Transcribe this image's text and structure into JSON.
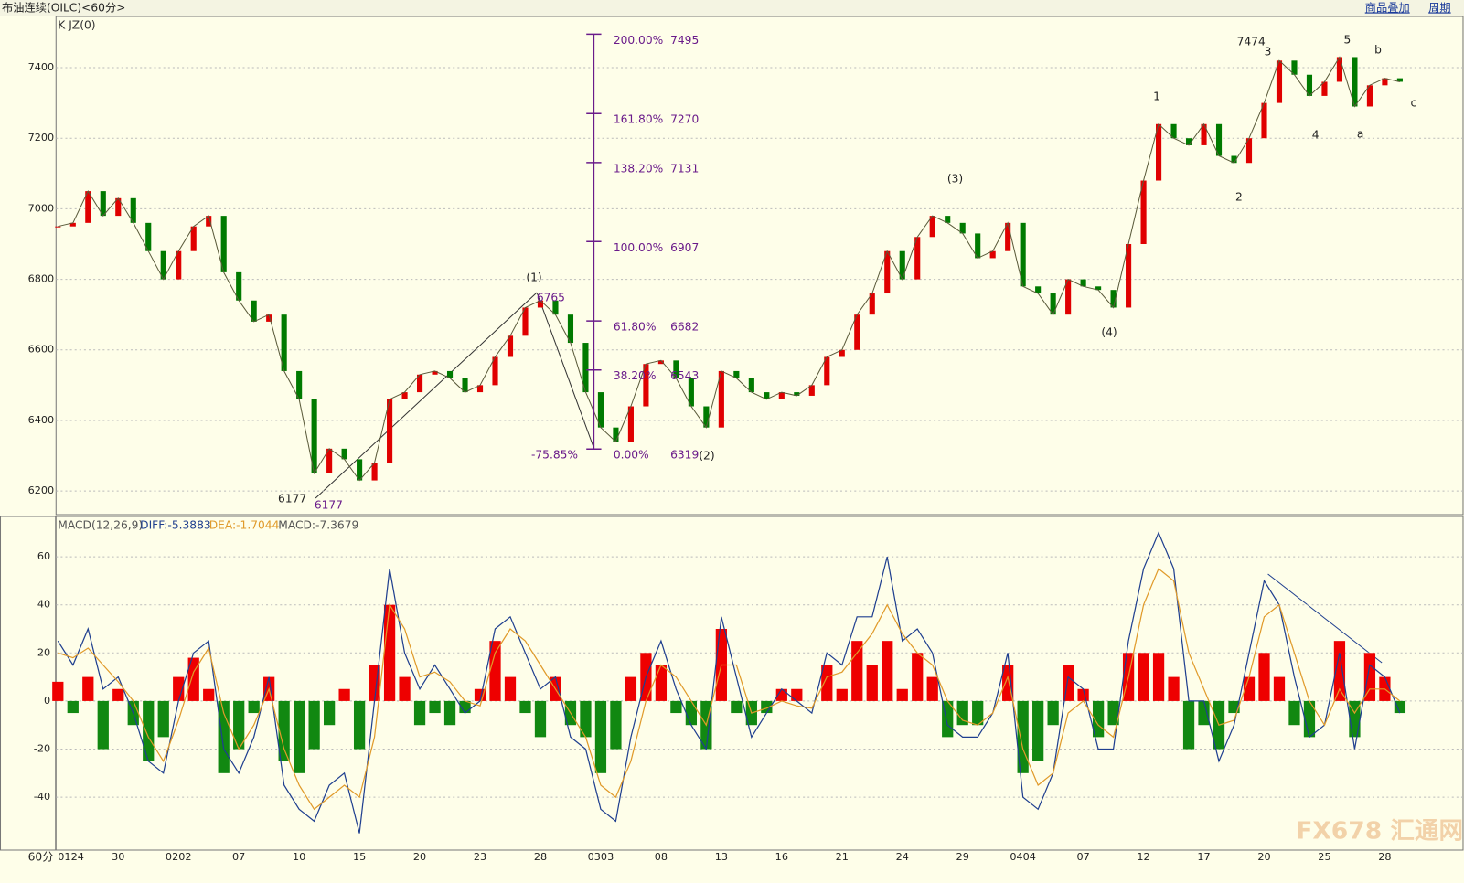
{
  "header": {
    "title": "布油连续(OILC)<60分>",
    "overlay": "商品叠加",
    "period": "周期",
    "indicator": "K JZ(0)",
    "timeframe": "60分",
    "watermark": "FX678 汇通网"
  },
  "chart_data": [
    {
      "type": "candlestick",
      "up_color": "#e00000",
      "down_color": "#007a00",
      "categories": [
        "0124",
        null,
        null,
        null,
        "30",
        null,
        null,
        null,
        "0202",
        null,
        null,
        null,
        "07",
        null,
        null,
        null,
        "10",
        null,
        null,
        null,
        "15",
        null,
        null,
        null,
        "20",
        null,
        null,
        null,
        "23",
        null,
        null,
        null,
        "28",
        null,
        null,
        null,
        "0303",
        null,
        null,
        null,
        "08",
        null,
        null,
        null,
        "13",
        null,
        null,
        null,
        "16",
        null,
        null,
        null,
        "21",
        null,
        null,
        null,
        "24",
        null,
        null,
        null,
        "29",
        null,
        null,
        null,
        "0404",
        null,
        null,
        null,
        "07",
        null,
        null,
        null,
        "12",
        null,
        null,
        null,
        "17",
        null,
        null,
        null,
        "20",
        null,
        null,
        null,
        "25",
        null,
        null,
        null,
        "28",
        null
      ],
      "values": [
        6950,
        6960,
        7050,
        6980,
        7030,
        6960,
        6880,
        6800,
        6880,
        6950,
        6980,
        6820,
        6740,
        6680,
        6700,
        6540,
        6460,
        6250,
        6320,
        6290,
        6230,
        6280,
        6460,
        6480,
        6530,
        6540,
        6520,
        6480,
        6500,
        6580,
        6640,
        6720,
        6740,
        6700,
        6620,
        6480,
        6380,
        6340,
        6440,
        6560,
        6570,
        6520,
        6440,
        6380,
        6540,
        6520,
        6480,
        6460,
        6480,
        6470,
        6500,
        6580,
        6600,
        6700,
        6760,
        6880,
        6800,
        6920,
        6980,
        6960,
        6930,
        6860,
        6880,
        6960,
        6780,
        6760,
        6700,
        6800,
        6780,
        6770,
        6720,
        6900,
        7080,
        7240,
        7200,
        7180,
        7240,
        7150,
        7130,
        7200,
        7300,
        7420,
        7380,
        7320,
        7360,
        7430,
        7290,
        7350,
        7370,
        7360
      ],
      "ylim": [
        6133,
        7540
      ],
      "yticks": [
        6200,
        6400,
        6600,
        6800,
        7000,
        7200,
        7400
      ],
      "grid": true,
      "fib_color": "#6a1b8a",
      "fib_levels": [
        {
          "label": "200.00%",
          "value": 7495
        },
        {
          "label": "161.80%",
          "value": 7270
        },
        {
          "label": "138.20%",
          "value": 7131
        },
        {
          "label": "100.00%",
          "value": 6907
        },
        {
          "label": "61.80%",
          "value": 6682
        },
        {
          "label": "38.20%",
          "value": 6543
        },
        {
          "label": "0.00%",
          "value": 6319
        }
      ],
      "annotations": [
        "(1)",
        6765,
        "(2)",
        "(3)",
        "(4)",
        "1",
        "2",
        "3",
        "4",
        "5",
        "a",
        "b",
        "c",
        7474,
        6177,
        6177,
        "-75.85%"
      ]
    },
    {
      "type": "macd",
      "title": "MACD(12,26,9)",
      "legend": [
        "DIFF:-5.3883",
        "DEA:-1.7044",
        "MACD:-7.3679"
      ],
      "ylim": [
        -62,
        76
      ],
      "yticks": [
        -40,
        -20,
        0,
        20,
        40,
        60
      ],
      "grid": true,
      "series": [
        {
          "name": "MACD",
          "type": "bar",
          "up_color": "#ee0000",
          "down_color": "#118811",
          "values": [
            8,
            -5,
            10,
            -20,
            5,
            -10,
            -25,
            -15,
            10,
            18,
            5,
            -30,
            -20,
            -5,
            10,
            -25,
            -30,
            -20,
            -10,
            5,
            -20,
            15,
            40,
            10,
            -10,
            -5,
            -10,
            -5,
            5,
            25,
            10,
            -5,
            -15,
            10,
            -10,
            -15,
            -30,
            -20,
            10,
            20,
            15,
            -5,
            -10,
            -20,
            30,
            -5,
            -10,
            -5,
            5,
            5,
            0,
            15,
            5,
            25,
            15,
            25,
            5,
            20,
            10,
            -15,
            -10,
            -10,
            0,
            15,
            -30,
            -25,
            -10,
            15,
            5,
            -15,
            -10,
            20,
            20,
            20,
            10,
            -20,
            -10,
            -20,
            -5,
            10,
            20,
            10,
            -10,
            -15,
            0,
            25,
            -15,
            20,
            10,
            -5
          ]
        },
        {
          "name": "DIFF",
          "type": "line",
          "color": "#1f3f8f",
          "values": [
            25,
            15,
            30,
            5,
            10,
            -5,
            -25,
            -30,
            0,
            20,
            25,
            -20,
            -30,
            -15,
            10,
            -35,
            -45,
            -50,
            -35,
            -30,
            -55,
            0,
            55,
            20,
            5,
            15,
            5,
            -5,
            0,
            30,
            35,
            20,
            5,
            10,
            -15,
            -20,
            -45,
            -50,
            -15,
            10,
            25,
            5,
            -10,
            -20,
            35,
            10,
            -15,
            -5,
            5,
            0,
            -5,
            20,
            15,
            35,
            35,
            60,
            25,
            30,
            20,
            -10,
            -15,
            -15,
            -5,
            20,
            -40,
            -45,
            -30,
            10,
            5,
            -20,
            -20,
            25,
            55,
            70,
            55,
            0,
            0,
            -25,
            -10,
            20,
            50,
            40,
            10,
            -15,
            -10,
            20,
            -20,
            15,
            10,
            -5
          ]
        },
        {
          "name": "DEA",
          "type": "line",
          "color": "#e09a2a",
          "values": [
            20,
            18,
            22,
            15,
            8,
            0,
            -15,
            -25,
            -8,
            12,
            22,
            -5,
            -20,
            -10,
            5,
            -20,
            -35,
            -45,
            -40,
            -35,
            -40,
            -15,
            40,
            30,
            10,
            12,
            8,
            0,
            -2,
            20,
            30,
            25,
            15,
            5,
            -5,
            -15,
            -35,
            -40,
            -25,
            0,
            15,
            10,
            0,
            -10,
            15,
            15,
            -5,
            -3,
            0,
            -2,
            -3,
            10,
            12,
            20,
            28,
            40,
            28,
            20,
            15,
            0,
            -8,
            -10,
            -5,
            10,
            -20,
            -35,
            -30,
            -5,
            0,
            -10,
            -15,
            10,
            40,
            55,
            50,
            20,
            5,
            -10,
            -8,
            10,
            35,
            40,
            20,
            0,
            -10,
            5,
            -5,
            5,
            5,
            0
          ]
        }
      ]
    }
  ]
}
